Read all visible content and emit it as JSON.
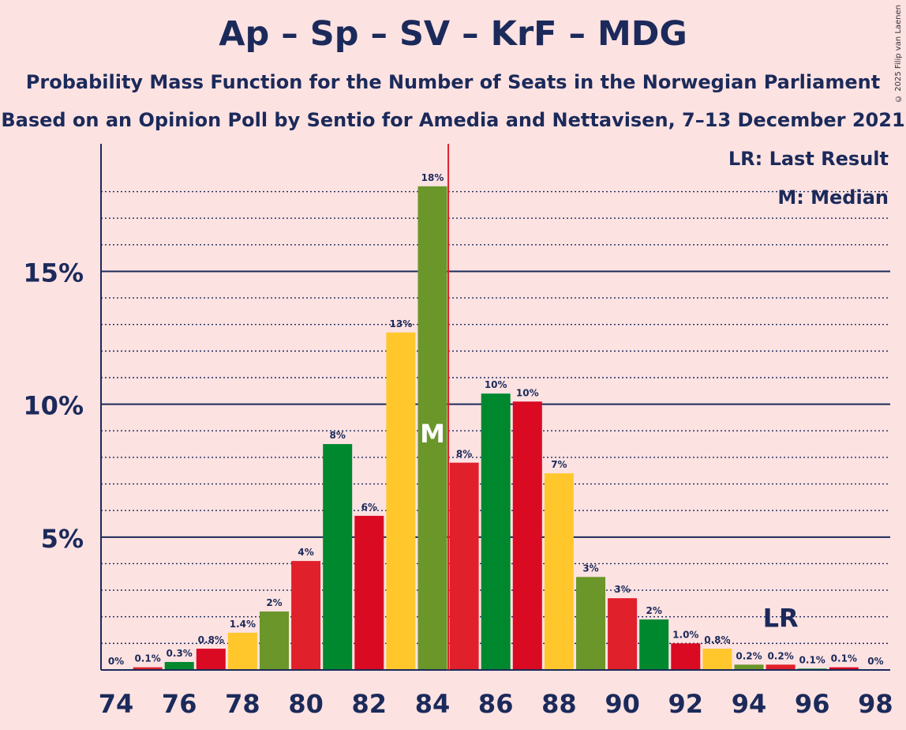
{
  "title": "Ap – Sp – SV – KrF – MDG",
  "subtitle1": "Probability Mass Function for the Number of Seats in the Norwegian Parliament",
  "subtitle2": "Based on an Opinion Poll by Sentio for Amedia and Nettavisen, 7–13 December 2021",
  "copyright": "© 2025 Filip van Laenen",
  "legend": {
    "lr": "LR: Last Result",
    "m": "M: Median"
  },
  "markers": {
    "median_label": "M",
    "median_seat": 84,
    "lr_label": "LR",
    "lr_seat": 95,
    "majority_line": 84.5
  },
  "colors": {
    "background": "#fde2e2",
    "axis": "#1b2a5a",
    "majority_line": "#e0202a"
  },
  "chart_data": {
    "type": "bar",
    "x": [
      74,
      75,
      76,
      77,
      78,
      79,
      80,
      81,
      82,
      83,
      84,
      85,
      86,
      87,
      88,
      89,
      90,
      91,
      92,
      93,
      94,
      95,
      96,
      97,
      98
    ],
    "values": [
      0,
      0.1,
      0.3,
      0.8,
      1.4,
      2.2,
      4.1,
      8.5,
      5.8,
      12.7,
      18.2,
      7.8,
      10.4,
      10.1,
      7.4,
      3.5,
      2.7,
      1.9,
      1.0,
      0.8,
      0.2,
      0.2,
      0.05,
      0.1,
      0
    ],
    "labels": [
      "0%",
      "0.1%",
      "0.3%",
      "0.8%",
      "1.4%",
      "2%",
      "4%",
      "8%",
      "6%",
      "13%",
      "18%",
      "8%",
      "10%",
      "10%",
      "7%",
      "3%",
      "3%",
      "2%",
      "1.0%",
      "0.8%",
      "0.2%",
      "0.2%",
      "0.1%",
      "0.1%",
      "0%"
    ],
    "bar_colors": [
      "#e0202a",
      "#e0202a",
      "#00882f",
      "#d90a22",
      "#ffc72c",
      "#6b962a",
      "#e0202a",
      "#00882f",
      "#d90a22",
      "#ffc72c",
      "#6b962a",
      "#e0202a",
      "#00882f",
      "#d90a22",
      "#ffc72c",
      "#6b962a",
      "#e0202a",
      "#00882f",
      "#d90a22",
      "#ffc72c",
      "#6b962a",
      "#e0202a",
      "#00882f",
      "#d90a22",
      "#ffc72c"
    ],
    "x_ticks": [
      74,
      76,
      78,
      80,
      82,
      84,
      86,
      88,
      90,
      92,
      94,
      96,
      98
    ],
    "y_ticks": [
      {
        "value": 5,
        "label": "5%"
      },
      {
        "value": 10,
        "label": "10%"
      },
      {
        "value": 15,
        "label": "15%"
      }
    ],
    "ylim": [
      0,
      19.8
    ],
    "grid": true
  }
}
